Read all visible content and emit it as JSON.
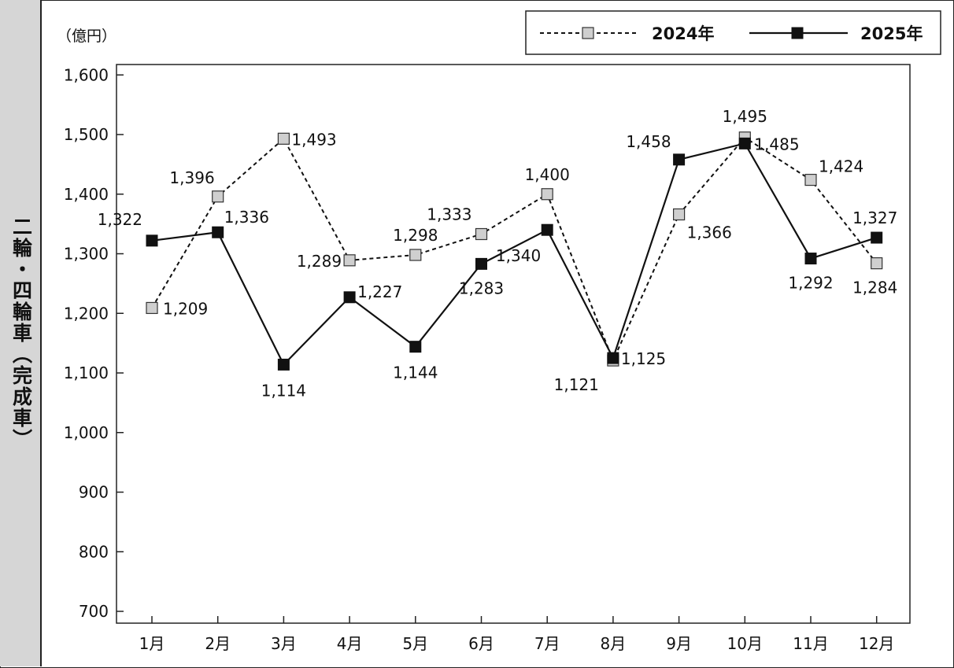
{
  "side_label": "二輪・四輪車（完成車）",
  "chart_data": {
    "type": "line",
    "unit_label": "（億円）",
    "categories": [
      "1月",
      "2月",
      "3月",
      "4月",
      "5月",
      "6月",
      "7月",
      "8月",
      "9月",
      "10月",
      "11月",
      "12月"
    ],
    "ylim": [
      700,
      1600
    ],
    "yticks": [
      700,
      800,
      900,
      1000,
      1100,
      1200,
      1300,
      1400,
      1500,
      1600
    ],
    "ytick_labels": [
      "700",
      "800",
      "900",
      "1,000",
      "1,100",
      "1,200",
      "1,300",
      "1,400",
      "1,500",
      "1,600"
    ],
    "grid": false,
    "legend_position": "top-right",
    "series": [
      {
        "name": "2024年",
        "style": "dashed",
        "marker": "square-light-gray",
        "color": "#cfcfcf",
        "values": [
          1209,
          1396,
          1493,
          1289,
          1298,
          1333,
          1400,
          1121,
          1366,
          1495,
          1424,
          1284
        ],
        "labels": [
          "1,209",
          "1,396",
          "1,493",
          "1,289",
          "1,298",
          "1,333",
          "1,400",
          "1,121",
          "1,366",
          "1,495",
          "1,424",
          "1,284"
        ]
      },
      {
        "name": "2025年",
        "style": "solid",
        "marker": "square-black",
        "color": "#111111",
        "values": [
          1322,
          1336,
          1114,
          1227,
          1144,
          1283,
          1340,
          1125,
          1458,
          1485,
          1292,
          1327
        ],
        "labels": [
          "1,322",
          "1,336",
          "1,114",
          "1,227",
          "1,144",
          "1,283",
          "1,340",
          "1,125",
          "1,458",
          "1,485",
          "1,292",
          "1,327"
        ]
      }
    ]
  }
}
